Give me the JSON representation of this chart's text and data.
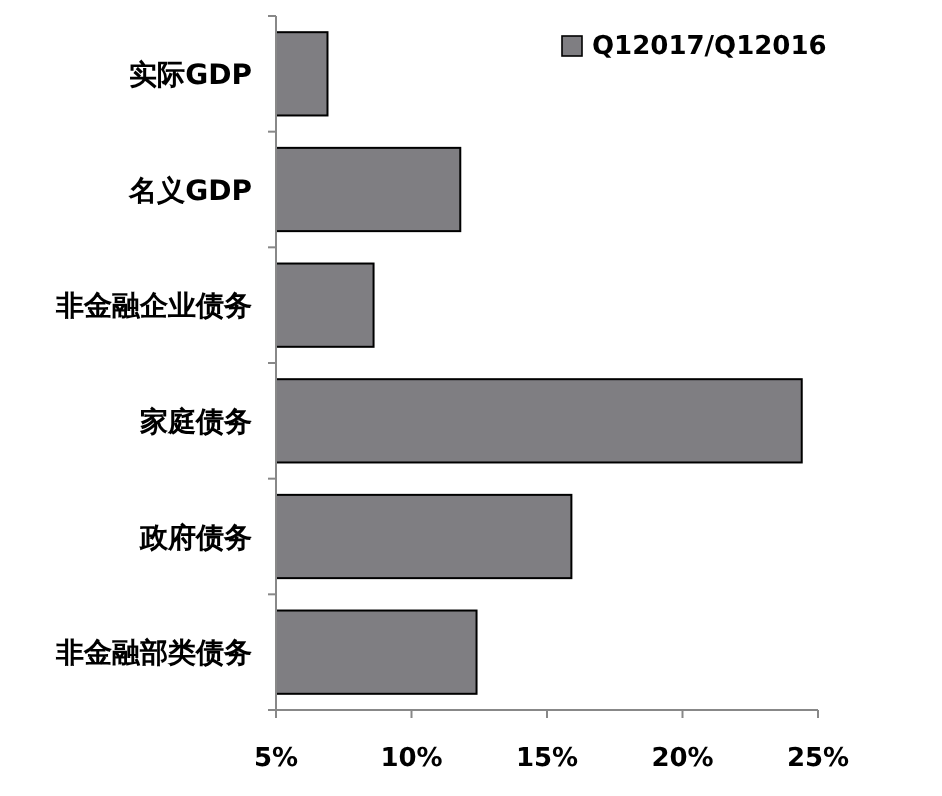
{
  "chart_data": {
    "type": "bar",
    "orientation": "horizontal",
    "categories": [
      "实际GDP",
      "名义GDP",
      "非金融企业债务",
      "家庭债务",
      "政府债务",
      "非金融部类债务"
    ],
    "series": [
      {
        "name": "Q12017/Q12016",
        "color": "#7f7e82",
        "values": [
          6.9,
          11.8,
          8.6,
          24.4,
          15.9,
          12.4
        ]
      }
    ],
    "xlim": [
      5,
      25
    ],
    "xticks": [
      {
        "value": 5,
        "label": "5%"
      },
      {
        "value": 10,
        "label": "10%"
      },
      {
        "value": 15,
        "label": "15%"
      },
      {
        "value": 20,
        "label": "20%"
      },
      {
        "value": 25,
        "label": "25%"
      }
    ],
    "legend": "top right",
    "grid": false
  }
}
